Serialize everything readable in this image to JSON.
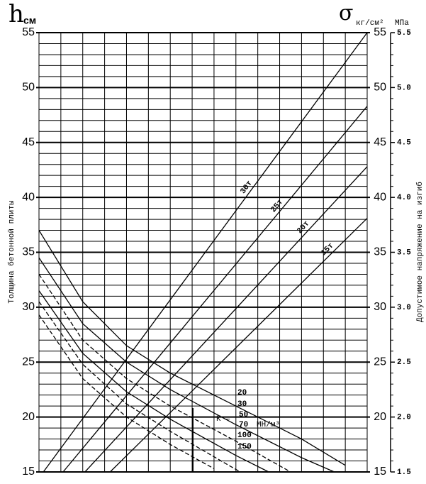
{
  "chart_data": {
    "type": "line",
    "y_symbol": "h",
    "y_unit": "см",
    "y2_symbol": "σ",
    "y2_unit": "кг/см²",
    "y3_unit": "МПа",
    "ylabel": "Толщина бетонной плиты",
    "y2label": "Допустимое напряжение на изгиб",
    "k_label": "К =",
    "k_unit": "МН/м³",
    "xlim": [
      0,
      15
    ],
    "xticks": [
      0,
      1,
      2,
      3,
      4,
      5,
      6,
      7,
      8,
      9,
      10,
      11,
      12,
      13,
      14,
      15
    ],
    "ylim": [
      15,
      55
    ],
    "yticks": [
      15,
      20,
      25,
      30,
      35,
      40,
      45,
      50,
      55
    ],
    "y2lim": [
      1.5,
      5.5
    ],
    "y2ticks": [
      1.5,
      {
        "value": 2,
        "label": "2.0"
      },
      2.5,
      {
        "value": 3,
        "label": "3.0"
      },
      3.5,
      {
        "value": 4,
        "label": "4.0"
      },
      4.5,
      {
        "value": 5,
        "label": "5.0"
      },
      5.5
    ],
    "grid": true,
    "series": [
      {
        "name": "30т",
        "color": "#000000",
        "dashed": false,
        "x": [
          0.2,
          15
        ],
        "values": [
          15,
          55
        ]
      },
      {
        "name": "25т",
        "color": "#000000",
        "dashed": false,
        "x": [
          1.1,
          15
        ],
        "values": [
          15,
          48.3
        ]
      },
      {
        "name": "20т",
        "color": "#000000",
        "dashed": false,
        "x": [
          2.1,
          15
        ],
        "values": [
          15,
          42.8
        ]
      },
      {
        "name": "15т",
        "color": "#000000",
        "dashed": false,
        "x": [
          3.25,
          15
        ],
        "values": [
          15,
          38.1
        ]
      },
      {
        "name": "20",
        "color": "#000000",
        "dashed": false,
        "x": [
          0,
          2,
          4,
          6,
          9,
          12,
          14
        ],
        "values": [
          37,
          30.5,
          26.5,
          24,
          21,
          18,
          15.6
        ]
      },
      {
        "name": "30",
        "color": "#000000",
        "dashed": false,
        "x": [
          0,
          2,
          4,
          6,
          9,
          12,
          13.5
        ],
        "values": [
          34.5,
          28.5,
          25,
          22.5,
          19.3,
          16.3,
          15
        ]
      },
      {
        "name": "50",
        "color": "#000000",
        "dashed": true,
        "x": [
          0,
          2,
          4,
          6,
          9,
          11.5
        ],
        "values": [
          33,
          27,
          23.5,
          21,
          17.8,
          15
        ]
      },
      {
        "name": "70",
        "color": "#000000",
        "dashed": false,
        "x": [
          0,
          2,
          4,
          6,
          9,
          10.5
        ],
        "values": [
          31.5,
          25.8,
          22.3,
          19.8,
          16.5,
          15
        ]
      },
      {
        "name": "100",
        "color": "#000000",
        "dashed": true,
        "x": [
          0,
          2,
          4,
          6,
          8.5,
          9.2
        ],
        "values": [
          30.5,
          24.8,
          21.2,
          18.7,
          15.8,
          15
        ]
      },
      {
        "name": "150",
        "color": "#000000",
        "dashed": true,
        "x": [
          0,
          2,
          4,
          6,
          8
        ],
        "values": [
          29.3,
          23.5,
          20,
          17.5,
          15.3
        ]
      }
    ]
  }
}
